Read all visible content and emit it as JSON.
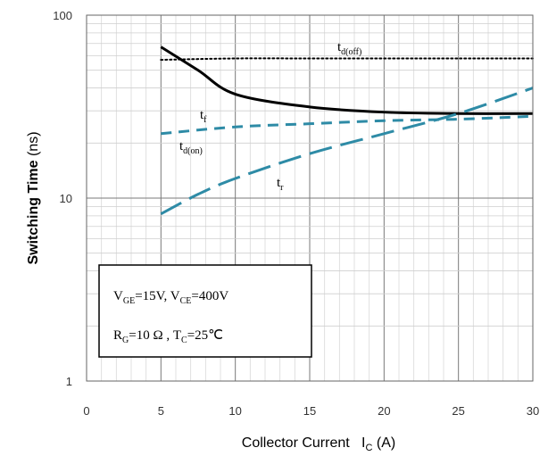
{
  "chart_data": {
    "type": "line",
    "x_axis": {
      "label_main": "Collector Current",
      "label_symbol": "I",
      "label_sub": "C",
      "label_unit": "(A)",
      "range": [
        0,
        30
      ],
      "ticks": [
        0,
        5,
        10,
        15,
        20,
        25,
        30
      ],
      "tick_labels": [
        "0",
        "5",
        "10",
        "15",
        "20",
        "25",
        "30"
      ],
      "minor_step": 1
    },
    "y_axis": {
      "label_main": "Switching Time",
      "label_unit": "(ns)",
      "scale": "log",
      "range": [
        1,
        100
      ],
      "ticks": [
        1,
        10,
        100
      ],
      "tick_labels": [
        "1",
        "10",
        "100"
      ]
    },
    "grid": true,
    "series": [
      {
        "name": "td(off)",
        "label_main": "t",
        "label_sub": "d(off)",
        "style": "dotted",
        "color": "#000000",
        "x": [
          5,
          10,
          15,
          20,
          25,
          30
        ],
        "y": [
          57,
          58,
          58,
          58,
          58,
          58
        ]
      },
      {
        "name": "tf",
        "label_main": "t",
        "label_sub": "f",
        "style": "solid",
        "color": "#000000",
        "x": [
          5,
          7.5,
          10,
          15,
          20,
          25,
          30
        ],
        "y": [
          67,
          50,
          37,
          31.5,
          29.5,
          29,
          29
        ]
      },
      {
        "name": "td(on)",
        "label_main": "t",
        "label_sub": "d(on)",
        "style": "dashed",
        "color": "#2E8BA6",
        "x": [
          5,
          10,
          15,
          20,
          25,
          30
        ],
        "y": [
          22.5,
          24.5,
          25.5,
          26.5,
          27,
          28
        ]
      },
      {
        "name": "tr",
        "label_main": "t",
        "label_sub": "r",
        "style": "dashdot",
        "color": "#2E8BA6",
        "x": [
          5,
          7.5,
          10,
          15,
          20,
          25,
          30
        ],
        "y": [
          8.2,
          10.5,
          12.8,
          17.5,
          22.5,
          29,
          40
        ]
      }
    ],
    "conditions": {
      "line1": {
        "v1": "V",
        "v1_sub": "GE",
        "v1_val": "=15V, ",
        "v2": "V",
        "v2_sub": "CE",
        "v2_val": "=400V"
      },
      "line2": {
        "r": "R",
        "r_sub": "G",
        "r_val": "=10 Ω , ",
        "t": "T",
        "t_sub": "C",
        "t_val": "=25℃"
      }
    }
  }
}
